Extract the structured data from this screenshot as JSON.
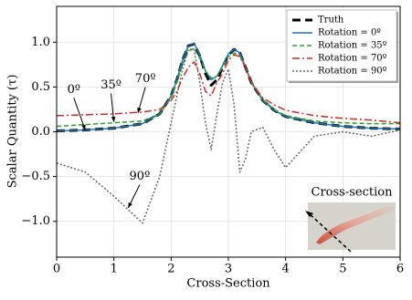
{
  "chart_data": {
    "type": "line",
    "xlabel": "Cross-Section",
    "ylabel": "Scalar Quantity (τ)",
    "x": [
      0,
      0.5,
      1,
      1.5,
      1.8,
      2.0,
      2.1,
      2.2,
      2.3,
      2.4,
      2.5,
      2.6,
      2.7,
      2.8,
      2.9,
      3.0,
      3.1,
      3.2,
      3.3,
      3.4,
      3.6,
      3.8,
      4.0,
      4.5,
      5,
      5.5,
      6
    ],
    "series": [
      {
        "name": "Truth",
        "color": "#000000",
        "dash": "9,5",
        "width": 3,
        "values": [
          0.01,
          0.02,
          0.04,
          0.09,
          0.2,
          0.4,
          0.58,
          0.8,
          0.96,
          0.98,
          0.85,
          0.65,
          0.52,
          0.58,
          0.72,
          0.86,
          0.92,
          0.88,
          0.72,
          0.55,
          0.35,
          0.24,
          0.17,
          0.1,
          0.06,
          0.04,
          0.03
        ]
      },
      {
        "name": "Rotation = 0º",
        "color": "#1f77b4",
        "dash": "",
        "width": 1.5,
        "values": [
          0.01,
          0.02,
          0.04,
          0.09,
          0.2,
          0.4,
          0.58,
          0.8,
          0.96,
          0.99,
          0.86,
          0.68,
          0.58,
          0.62,
          0.74,
          0.87,
          0.92,
          0.88,
          0.72,
          0.55,
          0.35,
          0.24,
          0.17,
          0.1,
          0.06,
          0.04,
          0.03
        ]
      },
      {
        "name": "Rotation = 35º",
        "color": "#2ca02c",
        "dash": "5,3",
        "width": 1.5,
        "values": [
          0.06,
          0.08,
          0.1,
          0.12,
          0.2,
          0.38,
          0.55,
          0.75,
          0.9,
          0.93,
          0.82,
          0.68,
          0.6,
          0.62,
          0.72,
          0.84,
          0.88,
          0.85,
          0.72,
          0.56,
          0.36,
          0.25,
          0.18,
          0.12,
          0.1,
          0.09,
          0.09
        ]
      },
      {
        "name": "Rotation = 70º",
        "color": "#d62728",
        "dash": "8,3,2,3",
        "width": 1.5,
        "values": [
          0.18,
          0.19,
          0.2,
          0.22,
          0.25,
          0.35,
          0.45,
          0.6,
          0.72,
          0.78,
          0.65,
          0.45,
          0.4,
          0.55,
          0.65,
          0.8,
          0.86,
          0.84,
          0.72,
          0.55,
          0.38,
          0.3,
          0.24,
          0.18,
          0.15,
          0.13,
          0.1
        ]
      },
      {
        "name": "Rotation = 90º",
        "color": "#666666",
        "dash": "2,2",
        "width": 1.5,
        "values": [
          -0.35,
          -0.45,
          -0.72,
          -1.02,
          -0.5,
          0.1,
          0.4,
          0.7,
          0.92,
          0.92,
          0.55,
          0.1,
          -0.2,
          0.2,
          0.55,
          0.7,
          0.3,
          -0.45,
          -0.3,
          0.0,
          0.05,
          -0.2,
          -0.4,
          -0.05,
          0.0,
          -0.05,
          0.02
        ]
      }
    ],
    "annotations": [
      "0º",
      "35º",
      "70º",
      "90º"
    ],
    "inset_title": "Cross-section",
    "xlim": [
      0,
      6
    ],
    "ylim": [
      -1.4,
      1.4
    ],
    "xticks": [
      0,
      1,
      2,
      3,
      4,
      5,
      6
    ],
    "yticks": [
      {
        "value": -1,
        "label": "−1.0"
      },
      {
        "value": -0.5,
        "label": "−0.5"
      },
      {
        "value": 0,
        "label": "0.0"
      },
      {
        "value": 0.5,
        "label": "0.5"
      },
      {
        "value": 1,
        "label": "1.0"
      }
    ],
    "grid": true,
    "legend": "upper right"
  }
}
